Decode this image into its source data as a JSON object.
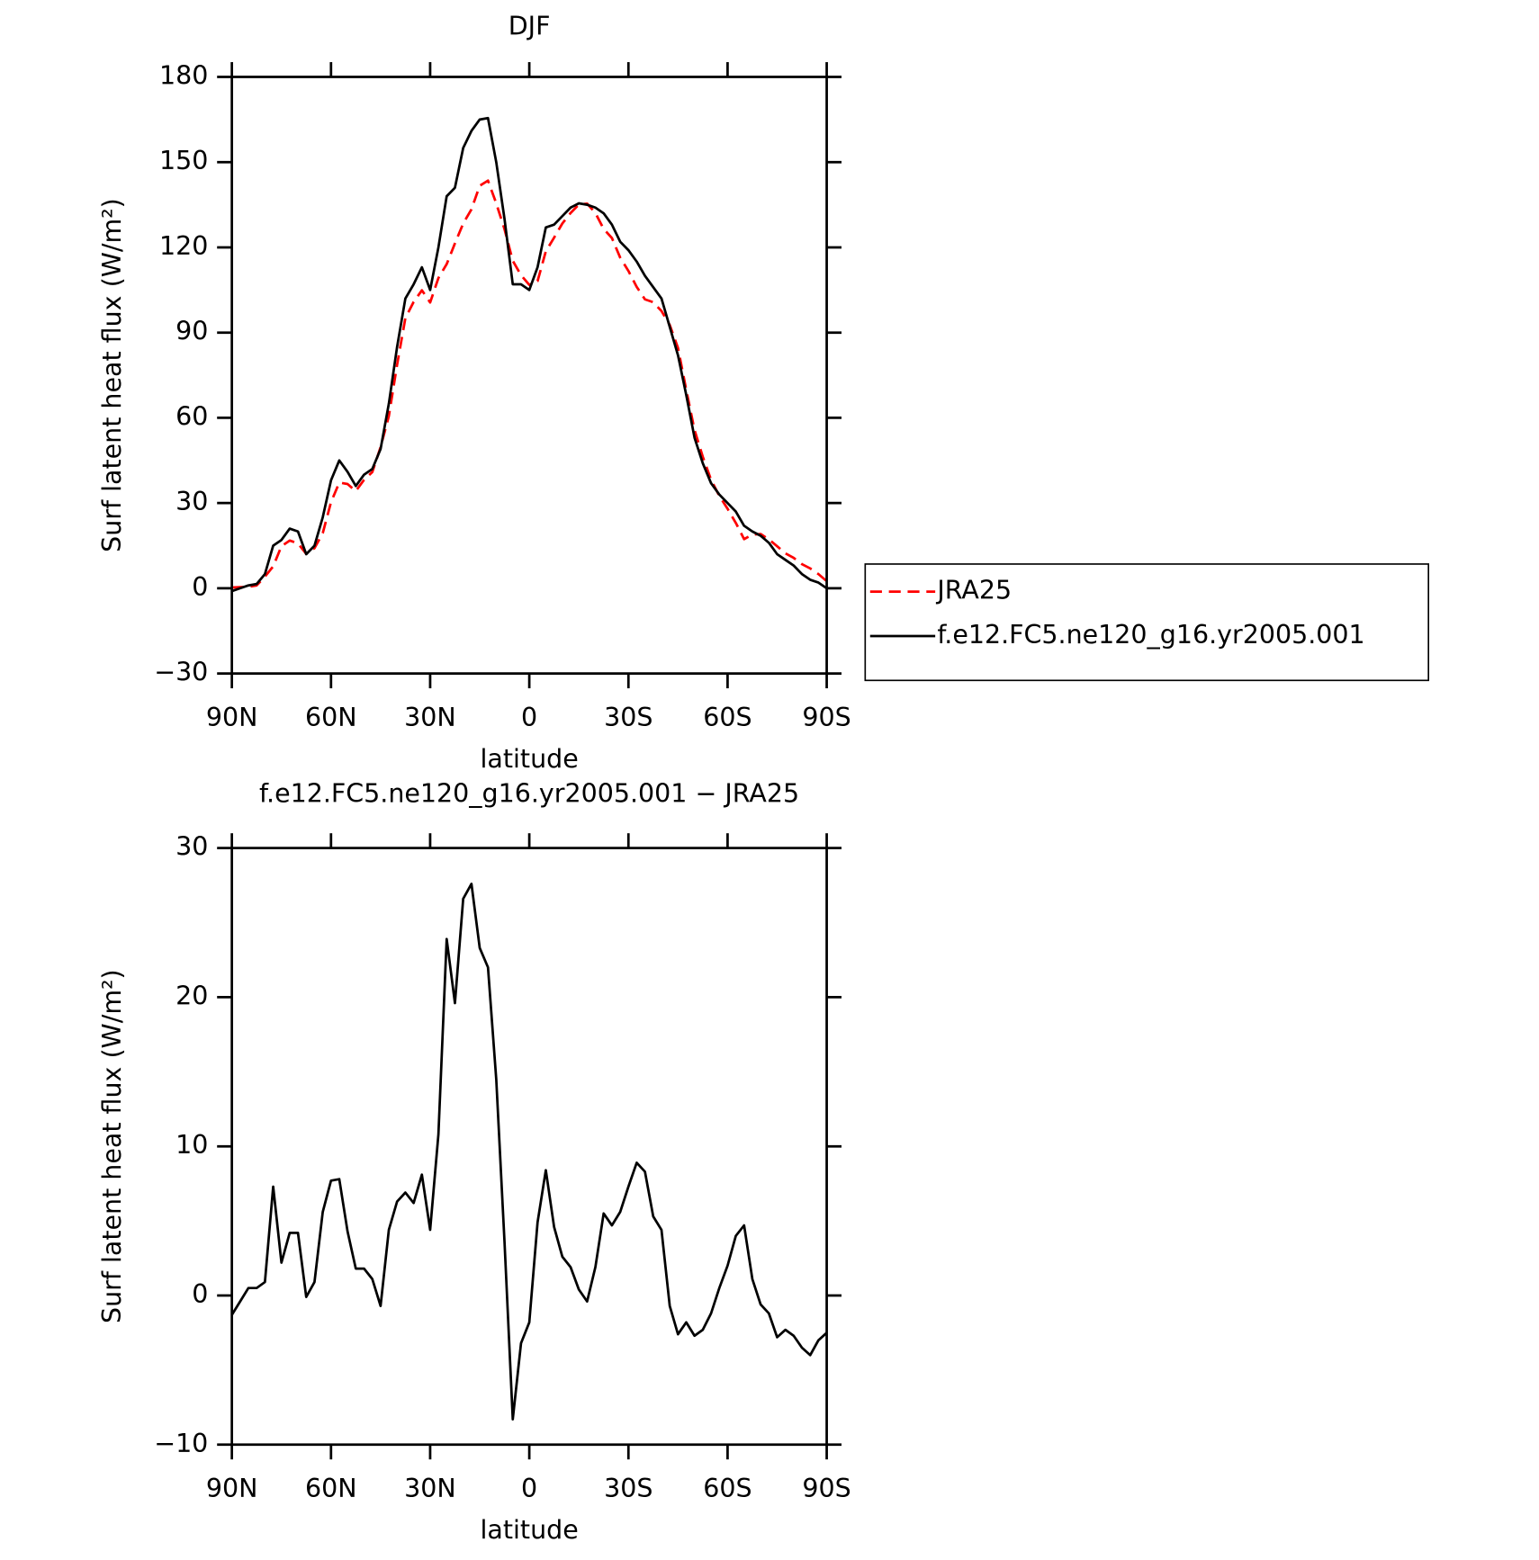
{
  "chart_data": [
    {
      "type": "line",
      "title": "DJF",
      "x_label": "latitude",
      "y_label": "Surf latent heat flux (W/m²)",
      "x": [
        90,
        87.5,
        85,
        82.5,
        80,
        77.5,
        75,
        72.5,
        70,
        67.5,
        65,
        62.5,
        60,
        57.5,
        55,
        52.5,
        50,
        47.5,
        45,
        42.5,
        40,
        37.5,
        35,
        32.5,
        30,
        27.5,
        25,
        22.5,
        20,
        17.5,
        15,
        12.5,
        10,
        7.5,
        5,
        2.5,
        0,
        -2.5,
        -5,
        -7.5,
        -10,
        -12.5,
        -15,
        -17.5,
        -20,
        -22.5,
        -25,
        -27.5,
        -30,
        -32.5,
        -35,
        -37.5,
        -40,
        -42.5,
        -45,
        -47.5,
        -50,
        -52.5,
        -55,
        -57.5,
        -60,
        -62.5,
        -65,
        -67.5,
        -70,
        -72.5,
        -75,
        -77.5,
        -80,
        -82.5,
        -85,
        -87.5,
        -90
      ],
      "xlim": [
        90,
        -90
      ],
      "xticks": [
        {
          "value": 90,
          "label": "90N"
        },
        {
          "value": 60,
          "label": "60N"
        },
        {
          "value": 30,
          "label": "30N"
        },
        {
          "value": 0,
          "label": "0"
        },
        {
          "value": -30,
          "label": "30S"
        },
        {
          "value": -60,
          "label": "60S"
        },
        {
          "value": -90,
          "label": "90S"
        }
      ],
      "ylim": [
        -30,
        180
      ],
      "yticks": [
        {
          "value": -30,
          "label": "−30"
        },
        0,
        30,
        60,
        90,
        120,
        150,
        180
      ],
      "legend": "right",
      "series": [
        {
          "name": "JRA25",
          "color": "#ff0000",
          "linestyle": "dashed",
          "values": [
            0.3,
            0.4,
            0.5,
            1.0,
            4.1,
            7.7,
            14.8,
            16.8,
            15.8,
            12.1,
            14.1,
            19.4,
            30.3,
            37.2,
            36.7,
            34.2,
            38.2,
            40.9,
            49.7,
            60.6,
            78.7,
            95.1,
            100.8,
            104.9,
            100.6,
            109.2,
            114.1,
            121.4,
            128.4,
            133.4,
            141.7,
            143.5,
            135.5,
            126.4,
            115.3,
            110.2,
            106.8,
            108.1,
            118.6,
            123.4,
            128.4,
            132.1,
            135.1,
            135.4,
            132.1,
            126.5,
            123.3,
            116.4,
            111.7,
            106.1,
            101.7,
            100.7,
            97.6,
            92.7,
            84.6,
            69.8,
            55.7,
            46.3,
            38.2,
            32.5,
            28.0,
            23.0,
            17.3,
            18.9,
            19.1,
            17.2,
            14.8,
            12.3,
            10.7,
            8.5,
            7.0,
            5.0,
            2.5
          ]
        },
        {
          "name": "f.e12.FC5.ne120_g16.yr2005.001",
          "color": "#000000",
          "linestyle": "solid",
          "values": [
            -1,
            0,
            1,
            1.5,
            5,
            15,
            17,
            21,
            20,
            12,
            15,
            25,
            38,
            45,
            41,
            36,
            40,
            42,
            49,
            65,
            85,
            102,
            107,
            113,
            105,
            120,
            138,
            141,
            155,
            161,
            165,
            165.5,
            150,
            130,
            107,
            107,
            105,
            113,
            127,
            128,
            131,
            134,
            135.5,
            135,
            134,
            132,
            128,
            122,
            119,
            115,
            110,
            106,
            102,
            92,
            82,
            68,
            53,
            44,
            37,
            33,
            30,
            27,
            22,
            20,
            18.5,
            16,
            12,
            10,
            8,
            5,
            3,
            2,
            0
          ]
        }
      ]
    },
    {
      "type": "line",
      "title": "f.e12.FC5.ne120_g16.yr2005.001 − JRA25",
      "x_label": "latitude",
      "y_label": "Surf latent heat flux (W/m²)",
      "x": [
        90,
        87.5,
        85,
        82.5,
        80,
        77.5,
        75,
        72.5,
        70,
        67.5,
        65,
        62.5,
        60,
        57.5,
        55,
        52.5,
        50,
        47.5,
        45,
        42.5,
        40,
        37.5,
        35,
        32.5,
        30,
        27.5,
        25,
        22.5,
        20,
        17.5,
        15,
        12.5,
        10,
        7.5,
        5,
        2.5,
        0,
        -2.5,
        -5,
        -7.5,
        -10,
        -12.5,
        -15,
        -17.5,
        -20,
        -22.5,
        -25,
        -27.5,
        -30,
        -32.5,
        -35,
        -37.5,
        -40,
        -42.5,
        -45,
        -47.5,
        -50,
        -52.5,
        -55,
        -57.5,
        -60,
        -62.5,
        -65,
        -67.5,
        -70,
        -72.5,
        -75,
        -77.5,
        -80,
        -82.5,
        -85,
        -87.5,
        -90
      ],
      "xlim": [
        90,
        -90
      ],
      "xticks": [
        {
          "value": 90,
          "label": "90N"
        },
        {
          "value": 60,
          "label": "60N"
        },
        {
          "value": 30,
          "label": "30N"
        },
        {
          "value": 0,
          "label": "0"
        },
        {
          "value": -30,
          "label": "30S"
        },
        {
          "value": -60,
          "label": "60S"
        },
        {
          "value": -90,
          "label": "90S"
        }
      ],
      "ylim": [
        -10,
        30
      ],
      "yticks": [
        {
          "value": -10,
          "label": "−10"
        },
        0,
        10,
        20,
        30
      ],
      "color": "#000000",
      "values": [
        -1.3,
        -0.4,
        0.5,
        0.5,
        0.9,
        7.3,
        2.2,
        4.2,
        4.2,
        -0.1,
        0.9,
        5.6,
        7.7,
        7.8,
        4.3,
        1.8,
        1.8,
        1.1,
        -0.7,
        4.4,
        6.3,
        6.9,
        6.2,
        8.1,
        4.4,
        10.8,
        23.9,
        19.6,
        26.6,
        27.6,
        23.3,
        22.0,
        14.5,
        3.6,
        -8.3,
        -3.2,
        -1.8,
        4.9,
        8.4,
        4.6,
        2.6,
        1.9,
        0.4,
        -0.4,
        1.9,
        5.5,
        4.7,
        5.6,
        7.3,
        8.9,
        8.3,
        5.3,
        4.4,
        -0.7,
        -2.6,
        -1.8,
        -2.7,
        -2.3,
        -1.2,
        0.5,
        2.0,
        4.0,
        4.7,
        1.1,
        -0.6,
        -1.2,
        -2.8,
        -2.3,
        -2.7,
        -3.5,
        -4.0,
        -3.0,
        -2.5
      ]
    }
  ]
}
